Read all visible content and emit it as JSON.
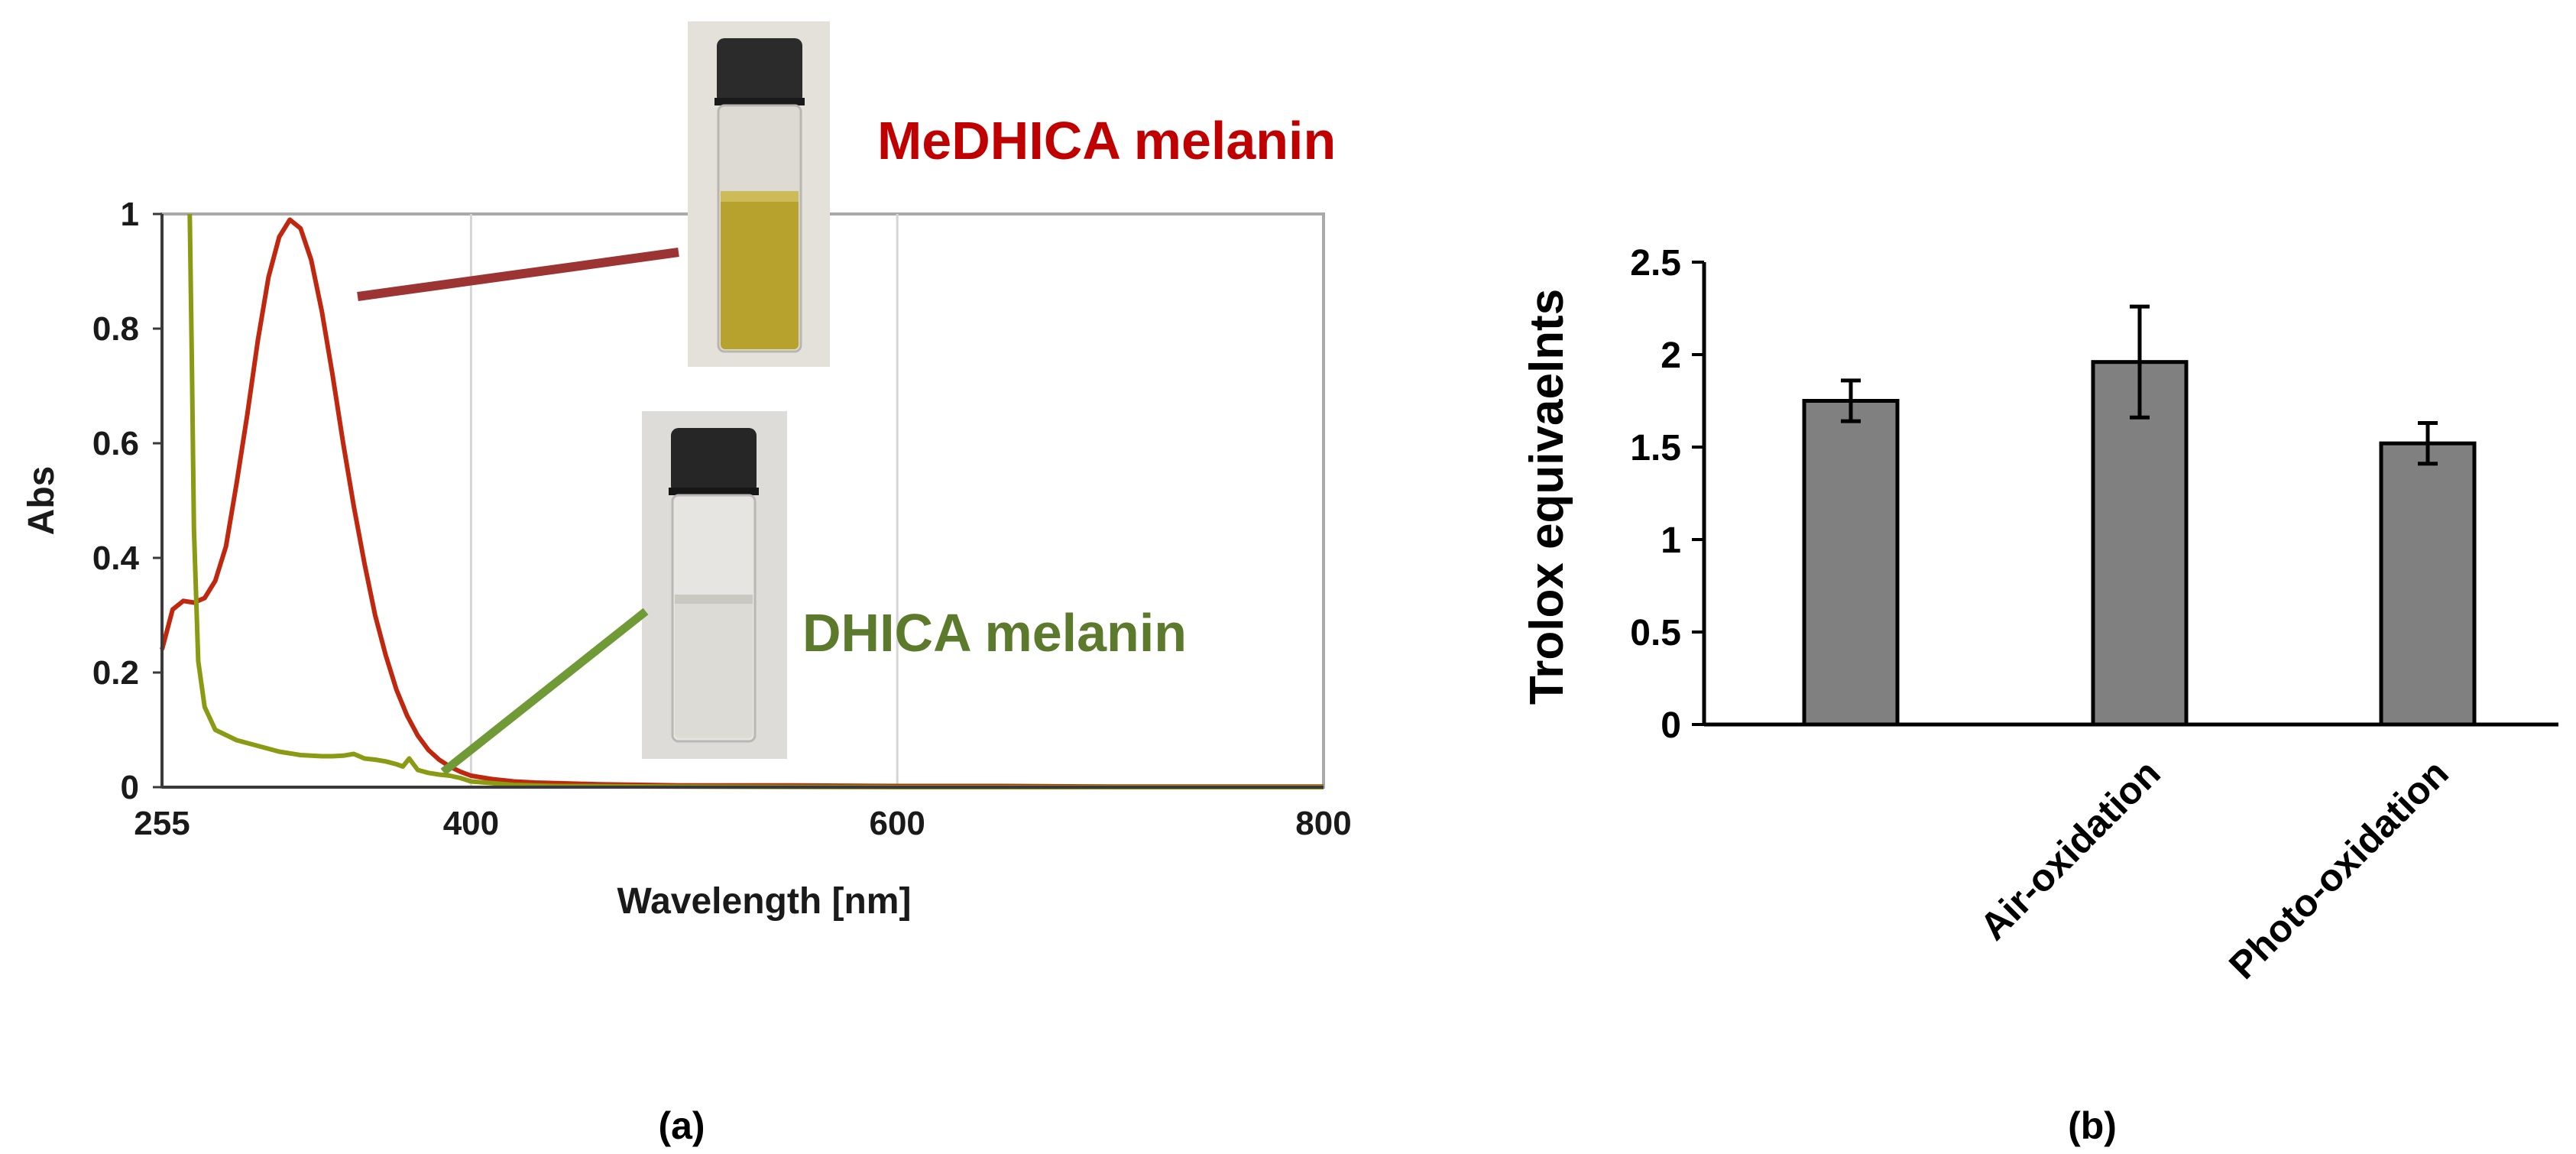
{
  "chart_data": [
    {
      "type": "line",
      "panel_label": "(a)",
      "xlabel": "Wavelength [nm]",
      "ylabel": "Abs",
      "xlim": [
        255,
        800
      ],
      "ylim": [
        0,
        1
      ],
      "x_ticks": [
        255,
        400,
        600,
        800
      ],
      "x_tick_labels": [
        "255",
        "400",
        "600",
        "800"
      ],
      "y_ticks": [
        0,
        0.2,
        0.4,
        0.6,
        0.8,
        1
      ],
      "y_tick_labels": [
        "0",
        "0.2",
        "0.4",
        "0.6",
        "0.8",
        "1"
      ],
      "grid": "vertical",
      "series": [
        {
          "name": "MeDHICA melanin",
          "color": "#c0270f",
          "x": [
            255,
            260,
            265,
            270,
            275,
            280,
            285,
            290,
            295,
            300,
            305,
            310,
            315,
            320,
            325,
            330,
            335,
            340,
            345,
            350,
            355,
            360,
            365,
            370,
            375,
            380,
            385,
            390,
            395,
            400,
            410,
            420,
            430,
            440,
            450,
            460,
            480,
            500,
            550,
            600,
            650,
            700,
            750,
            800
          ],
          "y": [
            0.24,
            0.31,
            0.325,
            0.322,
            0.33,
            0.36,
            0.42,
            0.53,
            0.65,
            0.78,
            0.89,
            0.96,
            0.99,
            0.975,
            0.92,
            0.83,
            0.72,
            0.6,
            0.49,
            0.39,
            0.3,
            0.23,
            0.17,
            0.125,
            0.09,
            0.065,
            0.048,
            0.036,
            0.027,
            0.02,
            0.014,
            0.01,
            0.008,
            0.007,
            0.006,
            0.005,
            0.004,
            0.003,
            0.003,
            0.002,
            0.002,
            0.001,
            0.001,
            0.001
          ]
        },
        {
          "name": "DHICA melanin",
          "color": "#8a9a12",
          "x": [
            268,
            269,
            270,
            272,
            275,
            280,
            290,
            300,
            310,
            320,
            330,
            335,
            340,
            345,
            350,
            355,
            360,
            365,
            368,
            371,
            375,
            380,
            385,
            390,
            395,
            400,
            420,
            440,
            500,
            600,
            700,
            800
          ],
          "y": [
            1.0,
            0.75,
            0.45,
            0.22,
            0.14,
            0.1,
            0.082,
            0.072,
            0.062,
            0.056,
            0.054,
            0.054,
            0.055,
            0.058,
            0.05,
            0.048,
            0.045,
            0.04,
            0.036,
            0.05,
            0.03,
            0.025,
            0.022,
            0.02,
            0.016,
            0.01,
            0.004,
            0.002,
            0.001,
            0.0,
            0.0,
            0.0
          ]
        }
      ]
    },
    {
      "type": "bar",
      "panel_label": "(b)",
      "ylabel": "Trolox equivaelnts",
      "ylim": [
        0,
        2.5
      ],
      "y_ticks": [
        0,
        0.5,
        1,
        1.5,
        2,
        2.5
      ],
      "y_tick_labels": [
        "0",
        "0.5",
        "1",
        "1.5",
        "2",
        "2.5"
      ],
      "categories": [
        "",
        "Air-oxidation",
        "Photo-oxidation"
      ],
      "values": [
        1.75,
        1.96,
        1.52
      ],
      "errors": [
        0.11,
        0.3,
        0.11
      ],
      "bar_color": "#808080"
    }
  ]
}
